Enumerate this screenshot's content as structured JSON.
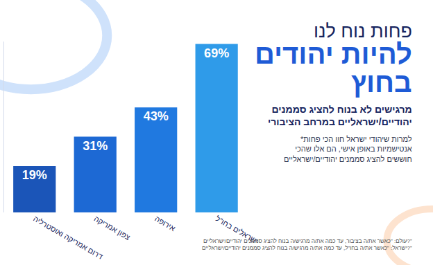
{
  "chart_data": {
    "type": "bar",
    "title": [
      "פחות נוח לנו",
      "להיות יהודים",
      "בחוץ"
    ],
    "subtitle": [
      "מרגישים לא בנוח להציג סממנים",
      "יהודיים/ישראליים במרחב הציבורי"
    ],
    "annotations": [
      "*למרות שיהודי ישראל חוו הכי פחות",
      "אנטישמיות באופן אישי, הם אלו שהכי",
      "חוששים להציג סממנים יהודיים/ישראליים"
    ],
    "source": [
      "עולם: \"כאשר את/ה בציבור, עד כמה את/ה מרגיש/ה בנוח להציג סממנים יהודיים/ישראליים?\"",
      "ישראל: \"כאשר את/ה בחו\"ל, עד כמה את/ה מרגיש/ה בנוח להציג סממנים יהודיים/ישראליים?\""
    ],
    "categories": [
      "דרום אמריקה ואוסטרליה",
      "צפון אמריקה",
      "אירופה",
      "ישראלים בחו\"ל"
    ],
    "values": [
      19,
      31,
      43,
      69
    ],
    "value_labels": [
      "19%",
      "31%",
      "43%",
      "69%"
    ],
    "colors": [
      "#1b55b8",
      "#1d69d4",
      "#2079e0",
      "#2f9be9"
    ],
    "ylim": [
      0,
      70
    ],
    "yticks": [],
    "grid": false,
    "data_labels": true,
    "tick_labels": "x"
  }
}
